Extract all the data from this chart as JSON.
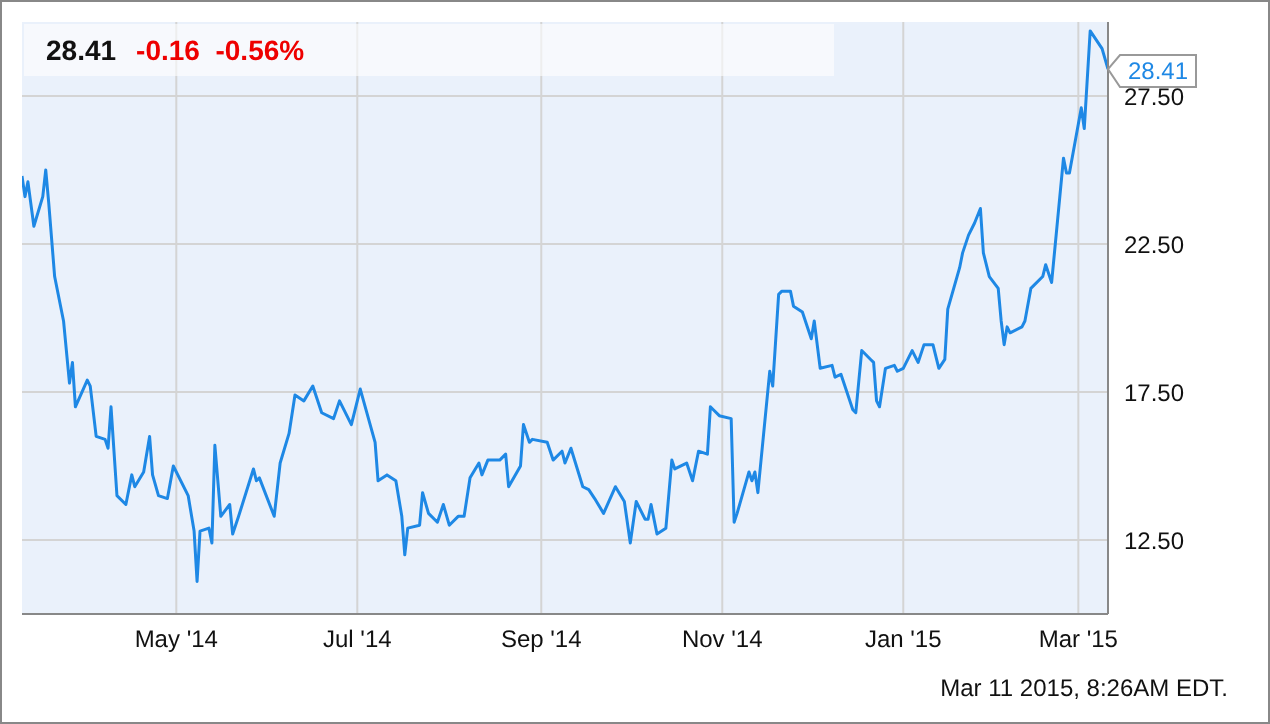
{
  "chart_data": {
    "type": "line",
    "title": "28.41",
    "subtitle": "-0.16  -0.56%",
    "x": [
      "2014-03-10",
      "2014-03-11",
      "2014-03-12",
      "2014-03-14",
      "2014-03-17",
      "2014-03-18",
      "2014-03-19",
      "2014-03-21",
      "2014-03-24",
      "2014-03-26",
      "2014-03-27",
      "2014-03-28",
      "2014-04-01",
      "2014-04-02",
      "2014-04-04",
      "2014-04-07",
      "2014-04-08",
      "2014-04-09",
      "2014-04-11",
      "2014-04-14",
      "2014-04-16",
      "2014-04-17",
      "2014-04-20",
      "2014-04-22",
      "2014-04-23",
      "2014-04-25",
      "2014-04-28",
      "2014-04-30",
      "2014-05-05",
      "2014-05-07",
      "2014-05-08",
      "2014-05-09",
      "2014-05-12",
      "2014-05-13",
      "2014-05-14",
      "2014-05-16",
      "2014-05-19",
      "2014-05-20",
      "2014-05-22",
      "2014-05-27",
      "2014-05-28",
      "2014-05-29",
      "2014-06-03",
      "2014-06-05",
      "2014-06-08",
      "2014-06-10",
      "2014-06-13",
      "2014-06-16",
      "2014-06-19",
      "2014-06-23",
      "2014-06-25",
      "2014-06-29",
      "2014-07-02",
      "2014-07-07",
      "2014-07-08",
      "2014-07-11",
      "2014-07-14",
      "2014-07-16",
      "2014-07-17",
      "2014-07-18",
      "2014-07-22",
      "2014-07-23",
      "2014-07-25",
      "2014-07-28",
      "2014-07-30",
      "2014-08-01",
      "2014-08-04",
      "2014-08-06",
      "2014-08-08",
      "2014-08-11",
      "2014-08-12",
      "2014-08-14",
      "2014-08-18",
      "2014-08-20",
      "2014-08-21",
      "2014-08-25",
      "2014-08-26",
      "2014-08-28",
      "2014-08-29",
      "2014-09-03",
      "2014-09-05",
      "2014-09-08",
      "2014-09-09",
      "2014-09-11",
      "2014-09-15",
      "2014-09-17",
      "2014-09-19",
      "2014-09-22",
      "2014-09-26",
      "2014-09-29",
      "2014-10-01",
      "2014-10-03",
      "2014-10-06",
      "2014-10-07",
      "2014-10-08",
      "2014-10-10",
      "2014-10-13",
      "2014-10-15",
      "2014-10-16",
      "2014-10-20",
      "2014-10-22",
      "2014-10-24",
      "2014-10-27",
      "2014-10-28",
      "2014-10-29",
      "2014-10-31",
      "2014-11-04",
      "2014-11-05",
      "2014-11-06",
      "2014-11-10",
      "2014-11-11",
      "2014-11-12",
      "2014-11-13",
      "2014-11-17",
      "2014-11-18",
      "2014-11-20",
      "2014-11-21",
      "2014-11-24",
      "2014-11-25",
      "2014-11-28",
      "2014-12-01",
      "2014-12-02",
      "2014-12-04",
      "2014-12-08",
      "2014-12-09",
      "2014-12-11",
      "2014-12-15",
      "2014-12-16",
      "2014-12-18",
      "2014-12-21",
      "2014-12-22",
      "2014-12-23",
      "2014-12-24",
      "2014-12-26",
      "2014-12-29",
      "2014-12-30",
      "2015-01-01",
      "2015-01-04",
      "2015-01-06",
      "2015-01-08",
      "2015-01-11",
      "2015-01-13",
      "2015-01-15",
      "2015-01-16",
      "2015-01-20",
      "2015-01-21",
      "2015-01-23",
      "2015-01-25",
      "2015-01-27",
      "2015-01-28",
      "2015-01-30",
      "2015-02-02",
      "2015-02-03",
      "2015-02-04",
      "2015-02-05",
      "2015-02-06",
      "2015-02-10",
      "2015-02-11",
      "2015-02-13",
      "2015-02-17",
      "2015-02-18",
      "2015-02-20",
      "2015-02-24",
      "2015-02-25",
      "2015-02-26",
      "2015-03-02",
      "2015-03-03",
      "2015-03-05",
      "2015-03-09",
      "2015-03-11"
    ],
    "series": [
      {
        "color": "#1e88e5",
        "values": [
          24.8,
          24.1,
          24.6,
          23.1,
          24.1,
          25.0,
          23.9,
          21.4,
          19.9,
          17.8,
          18.5,
          17.0,
          17.9,
          17.7,
          16.0,
          15.9,
          15.6,
          17.0,
          14.0,
          13.7,
          14.7,
          14.3,
          14.8,
          16.0,
          14.7,
          14.0,
          13.9,
          15.0,
          14.0,
          12.8,
          11.1,
          12.8,
          12.9,
          12.4,
          15.7,
          13.3,
          13.7,
          12.7,
          13.3,
          14.9,
          14.5,
          14.6,
          13.3,
          15.1,
          16.1,
          17.4,
          17.2,
          17.7,
          16.8,
          16.6,
          17.2,
          16.4,
          17.6,
          15.8,
          14.5,
          14.7,
          14.5,
          13.3,
          12.0,
          12.9,
          13.0,
          14.1,
          13.4,
          13.1,
          13.7,
          13.0,
          13.3,
          13.3,
          14.6,
          15.1,
          14.7,
          15.2,
          15.2,
          15.4,
          14.3,
          15.0,
          16.4,
          15.8,
          15.9,
          15.8,
          15.2,
          15.5,
          15.1,
          15.6,
          14.3,
          14.2,
          13.9,
          13.4,
          14.3,
          13.8,
          12.4,
          13.8,
          13.2,
          13.2,
          13.7,
          12.7,
          12.9,
          15.2,
          14.9,
          15.1,
          14.5,
          15.5,
          15.4,
          17.0,
          16.9,
          16.7,
          16.6,
          13.1,
          13.4,
          14.8,
          14.5,
          14.8,
          14.1,
          18.2,
          17.7,
          20.8,
          20.9,
          20.9,
          20.4,
          20.2,
          19.3,
          19.9,
          18.3,
          18.4,
          18.0,
          18.1,
          16.9,
          16.8,
          18.9,
          18.6,
          18.5,
          17.2,
          17.0,
          18.3,
          18.4,
          18.2,
          18.3,
          18.9,
          18.5,
          19.1,
          19.1,
          18.3,
          18.6,
          20.3,
          21.7,
          22.2,
          22.8,
          23.2,
          23.7,
          22.2,
          21.4,
          21.0,
          19.9,
          19.1,
          19.7,
          19.5,
          19.7,
          19.9,
          21.0,
          21.4,
          21.8,
          21.2,
          25.4,
          24.9,
          24.9,
          27.1,
          26.4,
          29.7,
          29.1,
          28.41
        ]
      }
    ],
    "xlim": [
      "2014-03-10",
      "2015-03-11"
    ],
    "xticks": [
      {
        "value": "2014-05-01",
        "label": "May '14"
      },
      {
        "value": "2014-07-01",
        "label": "Jul '14"
      },
      {
        "value": "2014-09-01",
        "label": "Sep '14"
      },
      {
        "value": "2014-11-01",
        "label": "Nov '14"
      },
      {
        "value": "2015-01-01",
        "label": "Jan '15"
      },
      {
        "value": "2015-03-01",
        "label": "Mar '15"
      }
    ],
    "ylim": [
      10,
      30
    ],
    "yticks": [
      {
        "value": 12.5,
        "label": "12.50"
      },
      {
        "value": 17.5,
        "label": "17.50"
      },
      {
        "value": 22.5,
        "label": "22.50"
      },
      {
        "value": 27.5,
        "label": "27.50"
      }
    ],
    "grid": true,
    "annotations": [
      {
        "text": "28.41",
        "x": "2015-03-11",
        "y": 28.41
      },
      "Mar 11 2015, 8:26AM EDT."
    ]
  }
}
